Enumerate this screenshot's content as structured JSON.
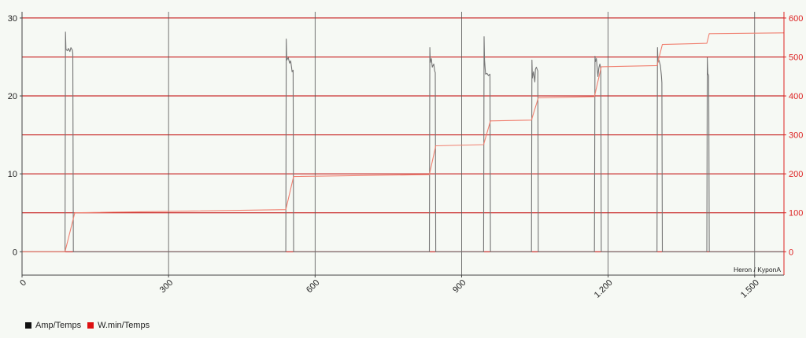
{
  "chart_data": {
    "type": "line",
    "watermark": "Heron / KyponA",
    "x_ticks": [
      "0",
      "300",
      "600",
      "900",
      "1.200",
      "1.500"
    ],
    "x_tick_values": [
      0,
      300,
      600,
      900,
      1200,
      1500
    ],
    "xlim": [
      0,
      1560
    ],
    "y_left": {
      "ticks": [
        "0",
        "10",
        "20",
        "30"
      ],
      "tick_values": [
        0,
        10,
        20,
        30
      ],
      "lim": [
        -3,
        30.8
      ]
    },
    "y_right": {
      "ticks": [
        "0",
        "100",
        "200",
        "300",
        "400",
        "500",
        "600"
      ],
      "tick_values": [
        0,
        100,
        200,
        300,
        400,
        500,
        600
      ],
      "lim": [
        -60,
        616
      ]
    },
    "colors": {
      "amp": "#757575",
      "energy": "#f08070",
      "grid_h": "#c00000",
      "grid_v": "#555555",
      "right_axis": "#dd2222",
      "legend_amp": "#111111",
      "legend_energy": "#dd1111"
    },
    "series": [
      {
        "name": "Amp/Temps",
        "axis": "left",
        "x": [
          0,
          88,
          89,
          90,
          93,
          95,
          98,
          100,
          103,
          104,
          105,
          108,
          540,
          541,
          542,
          545,
          548,
          550,
          552,
          553,
          555,
          556,
          558,
          834,
          835,
          836,
          838,
          840,
          843,
          845,
          846,
          847,
          849,
          945,
          946,
          947,
          949,
          952,
          955,
          958,
          959,
          961,
          1043,
          1044,
          1045,
          1047,
          1050,
          1051,
          1053,
          1056,
          1057,
          1059,
          1172,
          1173,
          1174,
          1176,
          1179,
          1181,
          1183,
          1185,
          1186,
          1188,
          1300,
          1301,
          1302,
          1304,
          1307,
          1309,
          1310,
          1311,
          1313,
          1402,
          1403,
          1404,
          1406,
          1407,
          1409,
          1560
        ],
        "y": [
          0,
          0,
          28.2,
          26,
          25.8,
          26.1,
          25.7,
          26.2,
          25.9,
          25.5,
          0,
          0,
          0,
          27.3,
          24.6,
          24.9,
          24.2,
          24.5,
          23.6,
          23.1,
          23.3,
          0,
          0,
          0,
          26.2,
          24.3,
          24.8,
          23.7,
          24.1,
          23.2,
          23,
          0,
          0,
          0,
          27.6,
          24.6,
          22.8,
          22.9,
          22.6,
          22.8,
          0,
          0,
          0,
          24.6,
          22.3,
          23.1,
          21.8,
          23.4,
          23.7,
          23.2,
          0,
          0,
          0,
          25.1,
          24.4,
          24.8,
          22.5,
          23.6,
          24.1,
          23.5,
          0,
          0,
          0,
          26.2,
          24.3,
          24.6,
          23.9,
          22.6,
          21.7,
          0,
          0,
          0,
          24.9,
          22.9,
          22.6,
          0,
          0,
          0
        ]
      },
      {
        "name": "W.min/Temps",
        "axis": "right",
        "x": [
          0,
          88,
          108,
          540,
          556,
          834,
          847,
          945,
          959,
          1043,
          1057,
          1172,
          1186,
          1300,
          1311,
          1402,
          1407,
          1560
        ],
        "y": [
          0,
          0,
          100,
          108,
          193,
          198,
          272,
          275,
          336,
          338,
          395,
          398,
          475,
          478,
          532,
          535,
          560,
          562
        ]
      }
    ]
  }
}
